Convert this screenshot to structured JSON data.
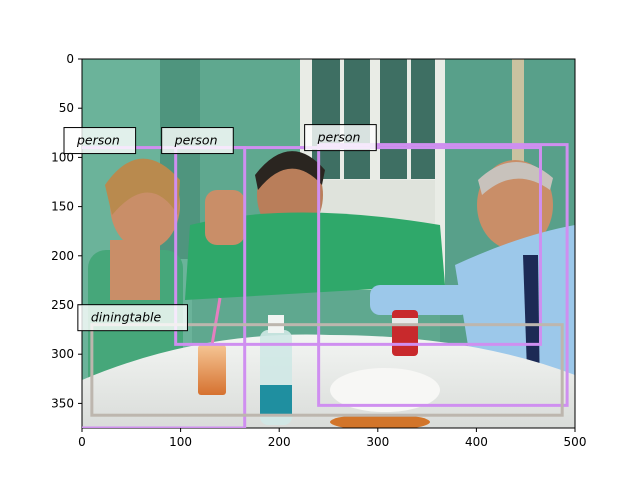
{
  "figure": {
    "x_ticks": [
      "0",
      "100",
      "200",
      "300",
      "400",
      "500"
    ],
    "y_ticks": [
      "0",
      "50",
      "100",
      "150",
      "200",
      "250",
      "300",
      "350"
    ],
    "x_tick_values": [
      0,
      100,
      200,
      300,
      400,
      500
    ],
    "y_tick_values": [
      0,
      50,
      100,
      150,
      200,
      250,
      300,
      350
    ],
    "x_range": [
      0,
      500
    ],
    "y_range": [
      0,
      375
    ],
    "y_inverted": true,
    "grid": false
  },
  "photo": {
    "description_icon": "photo-icon",
    "colors": {
      "wall": "#5fa88f",
      "door": "#e9ece6",
      "shirt_green": "#2fa86a",
      "shirt_blue": "#9cc8ea",
      "tablecloth": "#eef0ee",
      "skin": "#c98e68",
      "hair_dark": "#2a2520"
    }
  },
  "detections": [
    {
      "label": "person",
      "x0": -20,
      "y0": 90,
      "x1": 165,
      "y1": 375,
      "color": "#cf8ff0"
    },
    {
      "label": "person",
      "x0": 95,
      "y0": 90,
      "x1": 465,
      "y1": 290,
      "color": "#cf8ff0"
    },
    {
      "label": "person",
      "x0": 240,
      "y0": 87,
      "x1": 492,
      "y1": 352,
      "color": "#cf8ff0"
    },
    {
      "label": "diningtable",
      "x0": 10,
      "y0": 270,
      "x1": 487,
      "y1": 362,
      "color": "#bdb6ae"
    }
  ]
}
